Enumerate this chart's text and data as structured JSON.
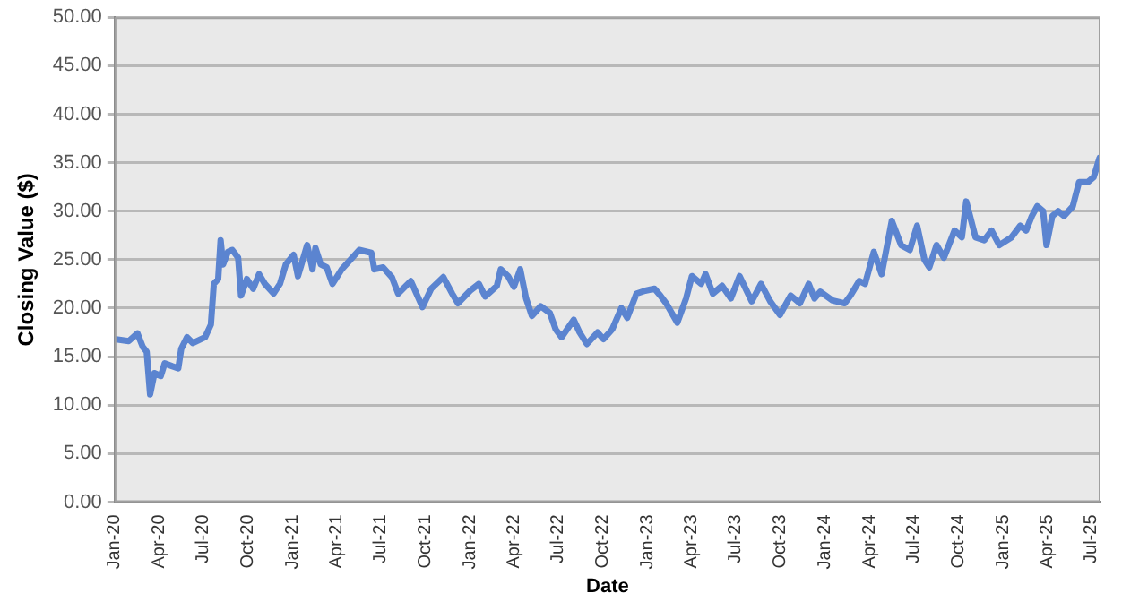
{
  "chart_data": {
    "type": "line",
    "xlabel": "Date",
    "ylabel": "Closing Value ($)",
    "xlim": [
      "2020-01-01",
      "2025-07-20"
    ],
    "xticks": [
      {
        "value": "2020-01",
        "label": "Jan-20"
      },
      {
        "value": "2020-04",
        "label": "Apr-20"
      },
      {
        "value": "2020-07",
        "label": "Jul-20"
      },
      {
        "value": "2020-10",
        "label": "Oct-20"
      },
      {
        "value": "2021-01",
        "label": "Jan-21"
      },
      {
        "value": "2021-04",
        "label": "Apr-21"
      },
      {
        "value": "2021-07",
        "label": "Jul-21"
      },
      {
        "value": "2021-10",
        "label": "Oct-21"
      },
      {
        "value": "2022-01",
        "label": "Jan-22"
      },
      {
        "value": "2022-04",
        "label": "Apr-22"
      },
      {
        "value": "2022-07",
        "label": "Jul-22"
      },
      {
        "value": "2022-10",
        "label": "Oct-22"
      },
      {
        "value": "2023-01",
        "label": "Jan-23"
      },
      {
        "value": "2023-04",
        "label": "Apr-23"
      },
      {
        "value": "2023-07",
        "label": "Jul-23"
      },
      {
        "value": "2023-10",
        "label": "Oct-23"
      },
      {
        "value": "2024-01",
        "label": "Jan-24"
      },
      {
        "value": "2024-04",
        "label": "Apr-24"
      },
      {
        "value": "2024-07",
        "label": "Jul-24"
      },
      {
        "value": "2024-10",
        "label": "Oct-24"
      },
      {
        "value": "2025-01",
        "label": "Jan-25"
      },
      {
        "value": "2025-04",
        "label": "Apr-25"
      },
      {
        "value": "2025-07",
        "label": "Jul-25"
      }
    ],
    "ylim": [
      0,
      50
    ],
    "yticks": [
      {
        "value": 0,
        "label": "0.00"
      },
      {
        "value": 5,
        "label": "5.00"
      },
      {
        "value": 10,
        "label": "10.00"
      },
      {
        "value": 15,
        "label": "15.00"
      },
      {
        "value": 20,
        "label": "20.00"
      },
      {
        "value": 25,
        "label": "25.00"
      },
      {
        "value": 30,
        "label": "30.00"
      },
      {
        "value": 35,
        "label": "35.00"
      },
      {
        "value": 40,
        "label": "40.00"
      },
      {
        "value": 45,
        "label": "45.00"
      },
      {
        "value": 50,
        "label": "50.00"
      }
    ],
    "grid": "y",
    "legend": false,
    "marker": "none",
    "line_style": "solid",
    "x": [
      "2020-01-01",
      "2020-01-30",
      "2020-02-17",
      "2020-02-28",
      "2020-03-07",
      "2020-03-14",
      "2020-03-23",
      "2020-04-05",
      "2020-04-13",
      "2020-04-29",
      "2020-05-11",
      "2020-05-17",
      "2020-05-29",
      "2020-06-10",
      "2020-07-05",
      "2020-07-17",
      "2020-07-23",
      "2020-08-01",
      "2020-08-06",
      "2020-08-11",
      "2020-08-21",
      "2020-08-30",
      "2020-09-11",
      "2020-09-17",
      "2020-09-29",
      "2020-10-12",
      "2020-10-24",
      "2020-11-05",
      "2020-11-23",
      "2020-12-06",
      "2020-12-18",
      "2021-01-03",
      "2021-01-12",
      "2021-01-31",
      "2021-02-11",
      "2021-02-17",
      "2021-02-28",
      "2021-03-12",
      "2021-03-24",
      "2021-04-12",
      "2021-04-30",
      "2021-05-18",
      "2021-06-12",
      "2021-06-18",
      "2021-07-06",
      "2021-07-24",
      "2021-08-06",
      "2021-08-12",
      "2021-09-01",
      "2021-09-25",
      "2021-10-13",
      "2021-11-07",
      "2021-11-25",
      "2021-12-07",
      "2022-01-01",
      "2022-01-19",
      "2022-02-01",
      "2022-02-25",
      "2022-03-05",
      "2022-03-20",
      "2022-04-01",
      "2022-04-14",
      "2022-04-26",
      "2022-05-08",
      "2022-05-26",
      "2022-06-14",
      "2022-06-26",
      "2022-07-08",
      "2022-08-02",
      "2022-08-14",
      "2022-08-29",
      "2022-09-20",
      "2022-10-02",
      "2022-10-20",
      "2022-11-08",
      "2022-11-20",
      "2022-12-09",
      "2022-12-27",
      "2023-01-15",
      "2023-01-27",
      "2023-02-08",
      "2023-03-03",
      "2023-03-21",
      "2023-04-02",
      "2023-04-21",
      "2023-04-30",
      "2023-05-15",
      "2023-06-03",
      "2023-06-21",
      "2023-07-09",
      "2023-08-03",
      "2023-08-22",
      "2023-09-10",
      "2023-09-30",
      "2023-10-22",
      "2023-11-10",
      "2023-11-28",
      "2023-12-10",
      "2023-12-22",
      "2024-01-16",
      "2024-02-10",
      "2024-02-22",
      "2024-03-11",
      "2024-03-23",
      "2024-04-10",
      "2024-04-26",
      "2024-05-17",
      "2024-06-05",
      "2024-06-23",
      "2024-07-08",
      "2024-07-23",
      "2024-08-02",
      "2024-08-17",
      "2024-09-01",
      "2024-09-23",
      "2024-10-08",
      "2024-10-17",
      "2024-11-05",
      "2024-11-23",
      "2024-12-08",
      "2024-12-24",
      "2025-01-18",
      "2025-02-05",
      "2025-02-17",
      "2025-03-01",
      "2025-03-12",
      "2025-03-24",
      "2025-03-31",
      "2025-04-12",
      "2025-04-24",
      "2025-05-06",
      "2025-05-24",
      "2025-06-06",
      "2025-06-24",
      "2025-07-06",
      "2025-07-18"
    ],
    "series": [
      {
        "color": "#5b84d0",
        "values": [
          16.8,
          16.6,
          17.4,
          16.0,
          15.5,
          11.1,
          13.3,
          13.0,
          14.3,
          14.0,
          13.8,
          15.8,
          17.0,
          16.4,
          17.0,
          18.3,
          22.5,
          23.0,
          27.0,
          24.5,
          25.8,
          26.0,
          25.2,
          21.3,
          23.0,
          22.0,
          23.5,
          22.5,
          21.5,
          22.5,
          24.5,
          25.5,
          23.3,
          26.5,
          24.0,
          26.2,
          24.5,
          24.2,
          22.5,
          24.0,
          25.0,
          26.0,
          25.7,
          24.0,
          24.2,
          23.2,
          21.5,
          21.8,
          22.8,
          20.1,
          22.0,
          23.2,
          21.5,
          20.5,
          21.8,
          22.5,
          21.2,
          22.3,
          24.0,
          23.3,
          22.2,
          24.0,
          21.0,
          19.2,
          20.2,
          19.5,
          17.8,
          17.0,
          18.8,
          17.5,
          16.3,
          17.5,
          16.8,
          17.8,
          20.0,
          19.0,
          21.5,
          21.8,
          22.0,
          21.3,
          20.5,
          18.5,
          21.0,
          23.3,
          22.5,
          23.5,
          21.5,
          22.3,
          21.0,
          23.3,
          20.7,
          22.5,
          20.7,
          19.3,
          21.3,
          20.5,
          22.5,
          21.0,
          21.7,
          20.8,
          20.5,
          21.3,
          22.8,
          22.5,
          25.8,
          23.5,
          29.0,
          26.5,
          26.0,
          28.5,
          25.0,
          24.2,
          26.5,
          25.2,
          28.0,
          27.3,
          31.0,
          27.3,
          27.0,
          28.0,
          26.5,
          27.3,
          28.5,
          28.0,
          29.5,
          30.5,
          30.0,
          26.5,
          29.5,
          30.0,
          29.5,
          30.5,
          33.0,
          33.0,
          33.5,
          35.5
        ]
      }
    ]
  }
}
